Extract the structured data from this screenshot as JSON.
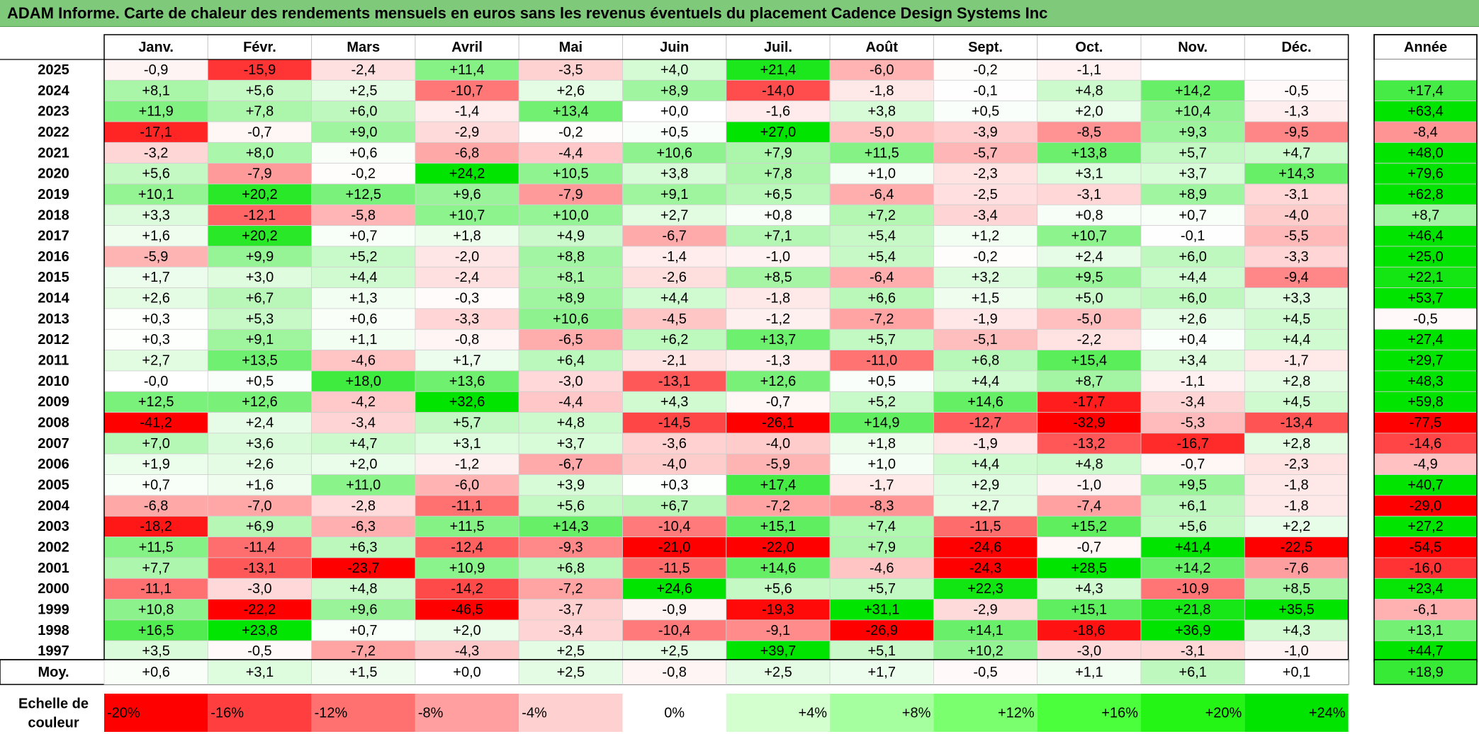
{
  "title": "ADAM Informe. Carte de chaleur des rendements mensuels en euros sans les revenus éventuels du placement Cadence Design Systems Inc",
  "chart_data": {
    "type": "heatmap",
    "title": "ADAM Informe. Carte de chaleur des rendements mensuels en euros sans les revenus éventuels du placement Cadence Design Systems Inc",
    "columns": [
      "Janv.",
      "Févr.",
      "Mars",
      "Avril",
      "Mai",
      "Juin",
      "Juil.",
      "Août",
      "Sept.",
      "Oct.",
      "Nov.",
      "Déc."
    ],
    "year_header": "Année",
    "rows": [
      {
        "label": "2025",
        "values": [
          "-0,9",
          "-15,9",
          "-2,4",
          "+11,4",
          "-3,5",
          "+4,0",
          "+21,4",
          "-6,0",
          "-0,2",
          "-1,1",
          "",
          ""
        ],
        "year": ""
      },
      {
        "label": "2024",
        "values": [
          "+8,1",
          "+5,6",
          "+2,5",
          "-10,7",
          "+2,6",
          "+8,9",
          "-14,0",
          "-1,8",
          "-0,1",
          "+4,8",
          "+14,2",
          "-0,5"
        ],
        "year": "+17,4"
      },
      {
        "label": "2023",
        "values": [
          "+11,9",
          "+7,8",
          "+6,0",
          "-1,4",
          "+13,4",
          "+0,0",
          "-1,6",
          "+3,8",
          "+0,5",
          "+2,0",
          "+10,4",
          "-1,3"
        ],
        "year": "+63,4"
      },
      {
        "label": "2022",
        "values": [
          "-17,1",
          "-0,7",
          "+9,0",
          "-2,9",
          "-0,2",
          "+0,5",
          "+27,0",
          "-5,0",
          "-3,9",
          "-8,5",
          "+9,3",
          "-9,5"
        ],
        "year": "-8,4"
      },
      {
        "label": "2021",
        "values": [
          "-3,2",
          "+8,0",
          "+0,6",
          "-6,8",
          "-4,4",
          "+10,6",
          "+7,9",
          "+11,5",
          "-5,7",
          "+13,8",
          "+5,7",
          "+4,7"
        ],
        "year": "+48,0"
      },
      {
        "label": "2020",
        "values": [
          "+5,6",
          "-7,9",
          "-0,2",
          "+24,2",
          "+10,5",
          "+3,8",
          "+7,8",
          "+1,0",
          "-2,3",
          "+3,1",
          "+3,7",
          "+14,3"
        ],
        "year": "+79,6"
      },
      {
        "label": "2019",
        "values": [
          "+10,1",
          "+20,2",
          "+12,5",
          "+9,6",
          "-7,9",
          "+9,1",
          "+6,5",
          "-6,4",
          "-2,5",
          "-3,1",
          "+8,9",
          "-3,1"
        ],
        "year": "+62,8"
      },
      {
        "label": "2018",
        "values": [
          "+3,3",
          "-12,1",
          "-5,8",
          "+10,7",
          "+10,0",
          "+2,7",
          "+0,8",
          "+7,2",
          "-3,4",
          "+0,8",
          "+0,7",
          "-4,0"
        ],
        "year": "+8,7"
      },
      {
        "label": "2017",
        "values": [
          "+1,6",
          "+20,2",
          "+0,7",
          "+1,8",
          "+4,9",
          "-6,7",
          "+7,1",
          "+5,4",
          "+1,2",
          "+10,7",
          "-0,1",
          "-5,5"
        ],
        "year": "+46,4"
      },
      {
        "label": "2016",
        "values": [
          "-5,9",
          "+9,9",
          "+5,2",
          "-2,0",
          "+8,8",
          "-1,4",
          "-1,0",
          "+5,4",
          "-0,2",
          "+2,4",
          "+6,0",
          "-3,3"
        ],
        "year": "+25,0"
      },
      {
        "label": "2015",
        "values": [
          "+1,7",
          "+3,0",
          "+4,4",
          "-2,4",
          "+8,1",
          "-2,6",
          "+8,5",
          "-6,4",
          "+3,2",
          "+9,5",
          "+4,4",
          "-9,4"
        ],
        "year": "+22,1"
      },
      {
        "label": "2014",
        "values": [
          "+2,6",
          "+6,7",
          "+1,3",
          "-0,3",
          "+8,9",
          "+4,4",
          "-1,8",
          "+6,6",
          "+1,5",
          "+5,0",
          "+6,0",
          "+3,3"
        ],
        "year": "+53,7"
      },
      {
        "label": "2013",
        "values": [
          "+0,3",
          "+5,3",
          "+0,6",
          "-3,3",
          "+10,6",
          "-4,5",
          "-1,2",
          "-7,2",
          "-1,9",
          "-5,0",
          "+2,6",
          "+4,5"
        ],
        "year": "-0,5"
      },
      {
        "label": "2012",
        "values": [
          "+0,3",
          "+9,1",
          "+1,1",
          "-0,8",
          "-6,5",
          "+6,2",
          "+13,7",
          "+5,7",
          "-5,1",
          "-2,2",
          "+0,4",
          "+4,4"
        ],
        "year": "+27,4"
      },
      {
        "label": "2011",
        "values": [
          "+2,7",
          "+13,5",
          "-4,6",
          "+1,7",
          "+6,4",
          "-2,1",
          "-1,3",
          "-11,0",
          "+6,8",
          "+15,4",
          "+3,4",
          "-1,7"
        ],
        "year": "+29,7"
      },
      {
        "label": "2010",
        "values": [
          "-0,0",
          "+0,5",
          "+18,0",
          "+13,6",
          "-3,0",
          "-13,1",
          "+12,6",
          "+0,5",
          "+4,4",
          "+8,7",
          "-1,1",
          "+2,8"
        ],
        "year": "+48,3"
      },
      {
        "label": "2009",
        "values": [
          "+12,5",
          "+12,6",
          "-4,2",
          "+32,6",
          "-4,4",
          "+4,3",
          "-0,7",
          "+5,2",
          "+14,6",
          "-17,7",
          "-3,4",
          "+4,5"
        ],
        "year": "+59,8"
      },
      {
        "label": "2008",
        "values": [
          "-41,2",
          "+2,4",
          "-3,4",
          "+5,7",
          "+4,8",
          "-14,5",
          "-26,1",
          "+14,9",
          "-12,7",
          "-32,9",
          "-5,3",
          "-13,4"
        ],
        "year": "-77,5"
      },
      {
        "label": "2007",
        "values": [
          "+7,0",
          "+3,6",
          "+4,7",
          "+3,1",
          "+3,7",
          "-3,6",
          "-4,0",
          "+1,8",
          "-1,9",
          "-13,2",
          "-16,7",
          "+2,8"
        ],
        "year": "-14,6"
      },
      {
        "label": "2006",
        "values": [
          "+1,9",
          "+2,6",
          "+2,0",
          "-1,2",
          "-6,7",
          "-4,0",
          "-5,9",
          "+1,0",
          "+4,4",
          "+4,8",
          "-0,7",
          "-2,3"
        ],
        "year": "-4,9"
      },
      {
        "label": "2005",
        "values": [
          "+0,7",
          "+1,6",
          "+11,0",
          "-6,0",
          "+3,9",
          "+0,3",
          "+17,4",
          "-1,7",
          "+2,9",
          "-1,0",
          "+9,5",
          "-1,8"
        ],
        "year": "+40,7"
      },
      {
        "label": "2004",
        "values": [
          "-6,8",
          "-7,0",
          "-2,8",
          "-11,1",
          "+5,6",
          "+6,7",
          "-7,2",
          "-8,3",
          "+2,7",
          "-7,4",
          "+6,1",
          "-1,8"
        ],
        "year": "-29,0"
      },
      {
        "label": "2003",
        "values": [
          "-18,2",
          "+6,9",
          "-6,3",
          "+11,5",
          "+14,3",
          "-10,4",
          "+15,1",
          "+7,4",
          "-11,5",
          "+15,2",
          "+5,6",
          "+2,2"
        ],
        "year": "+27,2"
      },
      {
        "label": "2002",
        "values": [
          "+11,5",
          "-11,4",
          "+6,3",
          "-12,4",
          "-9,3",
          "-21,0",
          "-22,0",
          "+7,9",
          "-24,6",
          "-0,7",
          "+41,4",
          "-22,5"
        ],
        "year": "-54,5"
      },
      {
        "label": "2001",
        "values": [
          "+7,7",
          "-13,1",
          "-23,7",
          "+10,9",
          "+6,8",
          "-11,5",
          "+14,6",
          "-4,6",
          "-24,3",
          "+28,5",
          "+14,2",
          "-7,6"
        ],
        "year": "-16,0"
      },
      {
        "label": "2000",
        "values": [
          "-11,1",
          "-3,0",
          "+4,8",
          "-14,2",
          "-7,2",
          "+24,6",
          "+5,6",
          "+5,7",
          "+22,3",
          "+4,3",
          "-10,9",
          "+8,5"
        ],
        "year": "+23,4"
      },
      {
        "label": "1999",
        "values": [
          "+10,8",
          "-22,2",
          "+9,6",
          "-46,5",
          "-3,7",
          "-0,9",
          "-19,3",
          "+31,1",
          "-2,9",
          "+15,1",
          "+21,8",
          "+35,5"
        ],
        "year": "-6,1"
      },
      {
        "label": "1998",
        "values": [
          "+16,5",
          "+23,8",
          "+0,7",
          "+2,0",
          "-3,4",
          "-10,4",
          "-9,1",
          "-26,9",
          "+14,1",
          "-18,6",
          "+36,9",
          "+4,3"
        ],
        "year": "+13,1"
      },
      {
        "label": "1997",
        "values": [
          "+3,5",
          "-0,5",
          "-7,2",
          "-4,3",
          "+2,5",
          "+2,5",
          "+39,7",
          "+5,1",
          "+10,2",
          "-3,0",
          "-3,1",
          "-1,0"
        ],
        "year": "+44,7"
      }
    ],
    "average": {
      "label": "Moy.",
      "values": [
        "+0,6",
        "+3,1",
        "+1,5",
        "+0,0",
        "+2,5",
        "-0,8",
        "+2,5",
        "+1,7",
        "-0,5",
        "+1,1",
        "+6,1",
        "+0,1"
      ],
      "year": "+18,9"
    },
    "color_scale": {
      "label": "Echelle de couleur",
      "stops": [
        {
          "label": "-20%",
          "value": -20,
          "color": "#ff0000"
        },
        {
          "label": "-16%",
          "value": -16,
          "color": "#ff3f3f"
        },
        {
          "label": "-12%",
          "value": -12,
          "color": "#ff7070"
        },
        {
          "label": "-8%",
          "value": -8,
          "color": "#ff9f9f"
        },
        {
          "label": "-4%",
          "value": -4,
          "color": "#ffd0d0"
        },
        {
          "label": "0%",
          "value": 0,
          "color": "#ffffff"
        },
        {
          "label": "+4%",
          "value": 4,
          "color": "#d3ffcf"
        },
        {
          "label": "+8%",
          "value": 8,
          "color": "#a6ff9e"
        },
        {
          "label": "+12%",
          "value": 12,
          "color": "#7aff6e"
        },
        {
          "label": "+16%",
          "value": 16,
          "color": "#4cff3d"
        },
        {
          "label": "+20%",
          "value": 20,
          "color": "#24f514"
        },
        {
          "label": "+24%",
          "value": 24,
          "color": "#00e400"
        }
      ]
    }
  }
}
